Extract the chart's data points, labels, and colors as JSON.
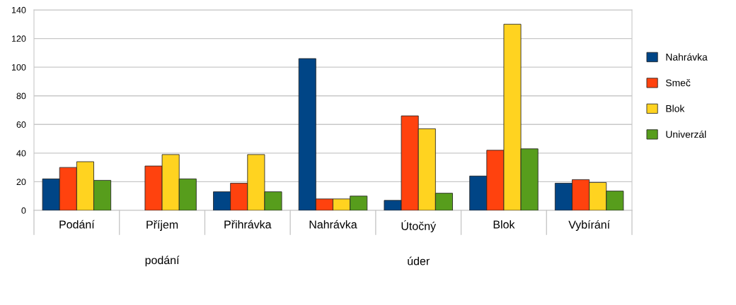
{
  "chart_data": {
    "type": "bar",
    "categories": [
      "Podání",
      "Příjem\npodání",
      "Přihrávka",
      "Nahrávka",
      "Útočný\núder",
      "Blok",
      "Vybírání"
    ],
    "series": [
      {
        "name": "Nahrávka",
        "color": "#004586",
        "values": [
          22,
          null,
          13,
          106,
          7,
          24,
          19
        ]
      },
      {
        "name": "Smeč",
        "color": "#ff420e",
        "values": [
          30,
          31,
          19,
          8,
          66,
          42,
          21.5
        ]
      },
      {
        "name": "Blok",
        "color": "#ffd320",
        "values": [
          34,
          39,
          39,
          8,
          57,
          130,
          19.5
        ]
      },
      {
        "name": "Univerzál",
        "color": "#579d1c",
        "values": [
          21,
          22,
          13,
          10,
          12,
          43,
          13.5
        ]
      }
    ],
    "ylim": [
      0,
      140
    ],
    "yticks": [
      0,
      20,
      40,
      60,
      80,
      100,
      120,
      140
    ],
    "grid": "y",
    "legend": "right"
  }
}
